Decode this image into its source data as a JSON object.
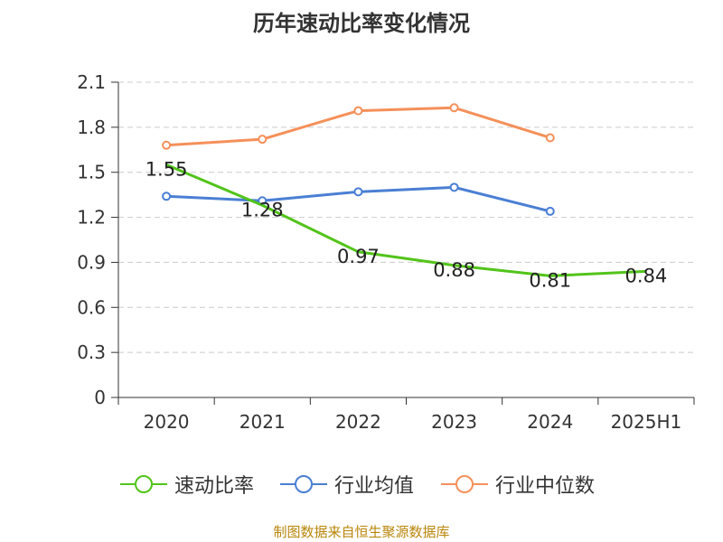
{
  "title": "历年速动比率变化情况",
  "source": "制图数据来自恒生聚源数据库",
  "chart_data": {
    "type": "line",
    "title": "历年速动比率变化情况",
    "categories": [
      "2020",
      "2021",
      "2022",
      "2023",
      "2024",
      "2025H1"
    ],
    "ylim": [
      0,
      2.1
    ],
    "yticks": [
      "0",
      "0.3",
      "0.6",
      "0.9",
      "1.2",
      "1.5",
      "1.8",
      "2.1"
    ],
    "ytick_values": [
      0,
      0.3,
      0.6,
      0.9,
      1.2,
      1.5,
      1.8,
      2.1
    ],
    "grid": true,
    "legend_position": "bottom",
    "series": [
      {
        "name": "速动比率",
        "color": "#52c41a",
        "values": [
          1.55,
          1.28,
          0.97,
          0.88,
          0.81,
          0.84
        ],
        "labels": [
          "1.55",
          "1.28",
          "0.97",
          "0.88",
          "0.81",
          "0.84"
        ]
      },
      {
        "name": "行业均值",
        "color": "#4a7fd4",
        "values": [
          1.34,
          1.31,
          1.37,
          1.4,
          1.24,
          null
        ]
      },
      {
        "name": "行业中位数",
        "color": "#f5905a",
        "values": [
          1.68,
          1.72,
          1.91,
          1.93,
          1.73,
          null
        ]
      }
    ]
  }
}
